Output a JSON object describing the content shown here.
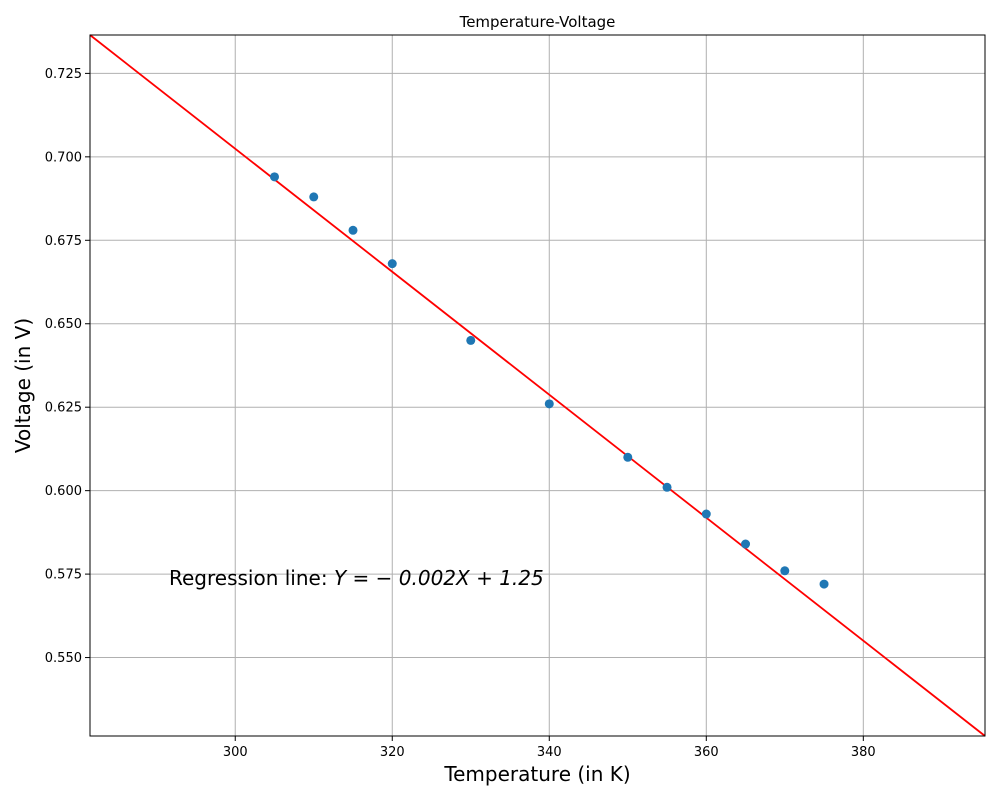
{
  "chart_data": {
    "type": "scatter",
    "title": "Temperature-Voltage",
    "xlabel": "Temperature (in K)",
    "ylabel": "Voltage (in V)",
    "xlim": [
      281.5,
      395.5
    ],
    "ylim": [
      0.5265,
      0.7365
    ],
    "grid": true,
    "xticks": [
      300,
      320,
      340,
      360,
      380
    ],
    "yticks": [
      0.55,
      0.575,
      0.6,
      0.625,
      0.65,
      0.675,
      0.7,
      0.725
    ],
    "xtick_labels": [
      "300",
      "320",
      "340",
      "360",
      "380"
    ],
    "ytick_labels": [
      "0.550",
      "0.575",
      "0.600",
      "0.625",
      "0.650",
      "0.675",
      "0.700",
      "0.725"
    ],
    "series": [
      {
        "type": "scatter",
        "color": "#1f77b4",
        "points": [
          {
            "x": 305,
            "y": 0.694
          },
          {
            "x": 310,
            "y": 0.688
          },
          {
            "x": 315,
            "y": 0.678
          },
          {
            "x": 320,
            "y": 0.668
          },
          {
            "x": 330,
            "y": 0.645
          },
          {
            "x": 340,
            "y": 0.626
          },
          {
            "x": 350,
            "y": 0.61
          },
          {
            "x": 355,
            "y": 0.601
          },
          {
            "x": 360,
            "y": 0.593
          },
          {
            "x": 365,
            "y": 0.584
          },
          {
            "x": 370,
            "y": 0.576
          },
          {
            "x": 375,
            "y": 0.572
          }
        ]
      },
      {
        "type": "line",
        "color": "#ff0000",
        "points": [
          {
            "x": 281.5,
            "y": 0.7365
          },
          {
            "x": 395.5,
            "y": 0.5265
          }
        ]
      }
    ],
    "annotation": {
      "prefix": "Regression line: ",
      "equation": "Y = − 0.002X + 1.25"
    }
  }
}
